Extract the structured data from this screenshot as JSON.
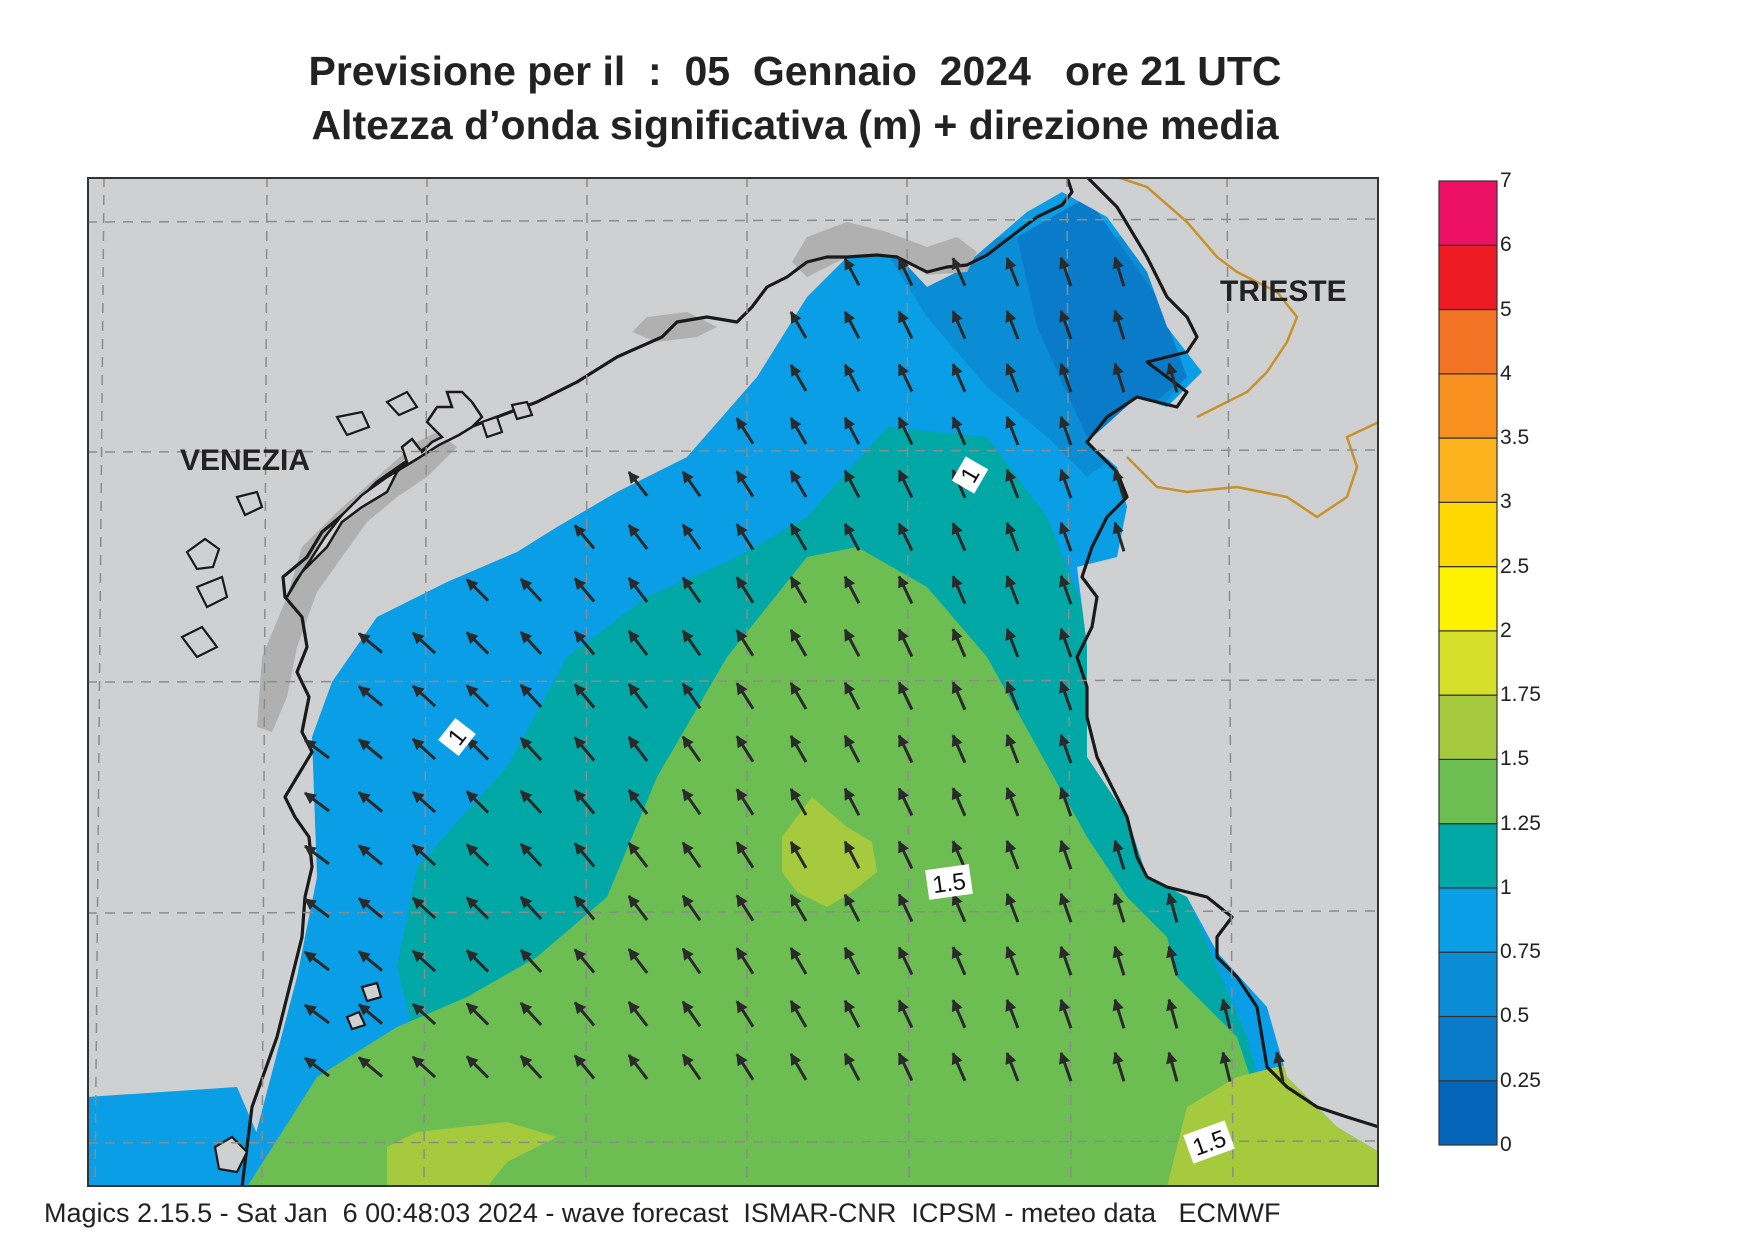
{
  "title": {
    "line1": "Previsione per il  :  05  Gennaio  2024   ore 21 UTC",
    "line2": "Altezza d’onda significativa (m) + direzione media"
  },
  "cities": [
    {
      "name": "VENEZIA"
    },
    {
      "name": "TRIESTE"
    }
  ],
  "contour_labels": [
    "1",
    "1",
    "1.5",
    "1.5"
  ],
  "legend": {
    "levels": [
      "0",
      "0.25",
      "0.5",
      "0.75",
      "1",
      "1.25",
      "1.5",
      "1.75",
      "2",
      "2.5",
      "3",
      "3.5",
      "4",
      "5",
      "6",
      "7"
    ],
    "colors": [
      "#0565b8",
      "#0a7bc8",
      "#0b8dd6",
      "#099ee6",
      "#02a8a6",
      "#6cbe52",
      "#a6ca3e",
      "#d6df2a",
      "#fff200",
      "#ffd800",
      "#fbb41e",
      "#f7901e",
      "#f47425",
      "#ed1c24",
      "#ec1164"
    ]
  },
  "colors": {
    "land": "#cfd0d1",
    "land_dark": "#b0b0b0",
    "coast": "#1a1a1a",
    "border": "#c8922a",
    "arrow": "#2a2a2a",
    "grid": "#8c8c8c"
  },
  "footer": "Magics 2.15.5 - Sat Jan  6 00:48:03 2024 - wave forecast  ISMAR-CNR  ICPSM - meteo data   ECMWF"
}
